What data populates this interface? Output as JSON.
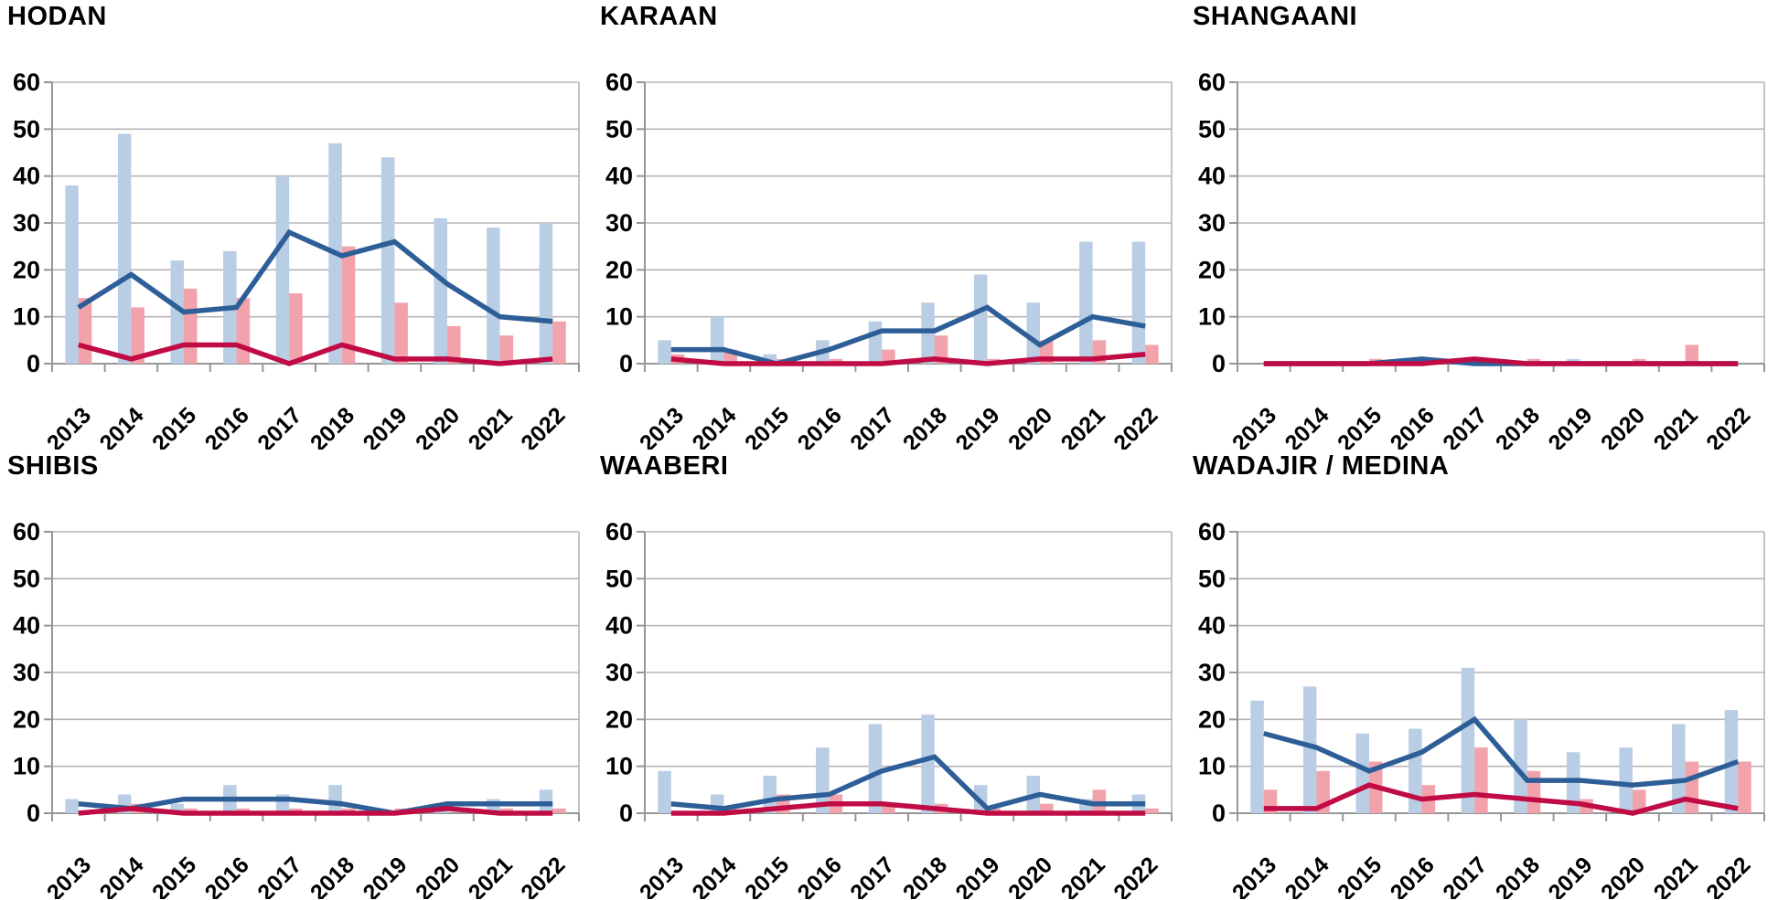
{
  "page": {
    "background": "#ffffff"
  },
  "colors": {
    "bar_blue": "#b9cde4",
    "bar_pink": "#f1a2ab",
    "line_blue": "#2e5e97",
    "line_red": "#c00b45",
    "gridline": "#b5b5b5",
    "axis": "#969696",
    "text": "#000000"
  },
  "axis": {
    "y_tick_labels": [
      "0",
      "10",
      "20",
      "30",
      "40",
      "50",
      "60"
    ],
    "y_ticks": [
      0,
      10,
      20,
      30,
      40,
      50,
      60
    ],
    "ylim": [
      0,
      60
    ],
    "grid": "horizontal"
  },
  "chart_data": [
    {
      "type": "bar+line",
      "title": "HODAN",
      "categories": [
        "2013",
        "2014",
        "2015",
        "2016",
        "2017",
        "2018",
        "2019",
        "2020",
        "2021",
        "2022"
      ],
      "ylim": [
        0,
        60
      ],
      "legend": "none",
      "series": [
        {
          "name": "blue bars",
          "kind": "bar",
          "color": "#b9cde4",
          "values": [
            38,
            49,
            22,
            24,
            40,
            47,
            44,
            31,
            29,
            30
          ]
        },
        {
          "name": "pink bars",
          "kind": "bar",
          "color": "#f1a2ab",
          "values": [
            14,
            12,
            16,
            14,
            15,
            25,
            13,
            8,
            6,
            9
          ]
        },
        {
          "name": "blue line",
          "kind": "line",
          "color": "#2e5e97",
          "values": [
            12,
            19,
            11,
            12,
            28,
            23,
            26,
            17,
            10,
            9
          ]
        },
        {
          "name": "red line",
          "kind": "line",
          "color": "#c00b45",
          "values": [
            4,
            1,
            4,
            4,
            0,
            4,
            1,
            1,
            0,
            1
          ]
        }
      ]
    },
    {
      "type": "bar+line",
      "title": "KARAAN",
      "categories": [
        "2013",
        "2014",
        "2015",
        "2016",
        "2017",
        "2018",
        "2019",
        "2020",
        "2021",
        "2022"
      ],
      "ylim": [
        0,
        60
      ],
      "legend": "none",
      "series": [
        {
          "name": "blue bars",
          "kind": "bar",
          "color": "#b9cde4",
          "values": [
            5,
            10,
            2,
            5,
            9,
            13,
            19,
            13,
            26,
            26
          ]
        },
        {
          "name": "pink bars",
          "kind": "bar",
          "color": "#f1a2ab",
          "values": [
            2,
            3,
            1,
            1,
            3,
            6,
            1,
            5,
            5,
            4
          ]
        },
        {
          "name": "blue line",
          "kind": "line",
          "color": "#2e5e97",
          "values": [
            3,
            3,
            0,
            3,
            7,
            7,
            12,
            4,
            10,
            8
          ]
        },
        {
          "name": "red line",
          "kind": "line",
          "color": "#c00b45",
          "values": [
            1,
            0,
            0,
            0,
            0,
            1,
            0,
            1,
            1,
            2
          ]
        }
      ]
    },
    {
      "type": "bar+line",
      "title": "SHANGAANI",
      "categories": [
        "2013",
        "2014",
        "2015",
        "2016",
        "2017",
        "2018",
        "2019",
        "2020",
        "2021",
        "2022"
      ],
      "ylim": [
        0,
        60
      ],
      "legend": "none",
      "series": [
        {
          "name": "blue bars",
          "kind": "bar",
          "color": "#b9cde4",
          "values": [
            0,
            0,
            0,
            0,
            0,
            0,
            1,
            0,
            0,
            0
          ]
        },
        {
          "name": "pink bars",
          "kind": "bar",
          "color": "#f1a2ab",
          "values": [
            0,
            0,
            1,
            0,
            0,
            1,
            0,
            1,
            4,
            0
          ]
        },
        {
          "name": "blue line",
          "kind": "line",
          "color": "#2e5e97",
          "values": [
            0,
            0,
            0,
            1,
            0,
            0,
            0,
            0,
            0,
            0
          ]
        },
        {
          "name": "red line",
          "kind": "line",
          "color": "#c00b45",
          "values": [
            0,
            0,
            0,
            0,
            1,
            0,
            0,
            0,
            0,
            0
          ]
        }
      ]
    },
    {
      "type": "bar+line",
      "title": "SHIBIS",
      "categories": [
        "2013",
        "2014",
        "2015",
        "2016",
        "2017",
        "2018",
        "2019",
        "2020",
        "2021",
        "2022"
      ],
      "ylim": [
        0,
        60
      ],
      "legend": "none",
      "series": [
        {
          "name": "blue bars",
          "kind": "bar",
          "color": "#b9cde4",
          "values": [
            3,
            4,
            2,
            6,
            4,
            6,
            0,
            1,
            3,
            5
          ]
        },
        {
          "name": "pink bars",
          "kind": "bar",
          "color": "#f1a2ab",
          "values": [
            0,
            2,
            1,
            1,
            1,
            1,
            1,
            0,
            1,
            1
          ]
        },
        {
          "name": "blue line",
          "kind": "line",
          "color": "#2e5e97",
          "values": [
            2,
            1,
            3,
            3,
            3,
            2,
            0,
            2,
            2,
            2
          ]
        },
        {
          "name": "red line",
          "kind": "line",
          "color": "#c00b45",
          "values": [
            0,
            1,
            0,
            0,
            0,
            0,
            0,
            1,
            0,
            0
          ]
        }
      ]
    },
    {
      "type": "bar+line",
      "title": "WAABERI",
      "categories": [
        "2013",
        "2014",
        "2015",
        "2016",
        "2017",
        "2018",
        "2019",
        "2020",
        "2021",
        "2022"
      ],
      "ylim": [
        0,
        60
      ],
      "legend": "none",
      "series": [
        {
          "name": "blue bars",
          "kind": "bar",
          "color": "#b9cde4",
          "values": [
            9,
            4,
            8,
            14,
            19,
            21,
            6,
            8,
            3,
            4
          ]
        },
        {
          "name": "pink bars",
          "kind": "bar",
          "color": "#f1a2ab",
          "values": [
            0,
            1,
            4,
            4,
            2,
            2,
            1,
            2,
            5,
            1
          ]
        },
        {
          "name": "blue line",
          "kind": "line",
          "color": "#2e5e97",
          "values": [
            2,
            1,
            3,
            4,
            9,
            12,
            1,
            4,
            2,
            2
          ]
        },
        {
          "name": "red line",
          "kind": "line",
          "color": "#c00b45",
          "values": [
            0,
            0,
            1,
            2,
            2,
            1,
            0,
            0,
            0,
            0
          ]
        }
      ]
    },
    {
      "type": "bar+line",
      "title": "WADAJIR / MEDINA",
      "categories": [
        "2013",
        "2014",
        "2015",
        "2016",
        "2017",
        "2018",
        "2019",
        "2020",
        "2021",
        "2022"
      ],
      "ylim": [
        0,
        60
      ],
      "legend": "none",
      "series": [
        {
          "name": "blue bars",
          "kind": "bar",
          "color": "#b9cde4",
          "values": [
            24,
            27,
            17,
            18,
            31,
            20,
            13,
            14,
            19,
            22
          ]
        },
        {
          "name": "pink bars",
          "kind": "bar",
          "color": "#f1a2ab",
          "values": [
            5,
            9,
            11,
            6,
            14,
            9,
            3,
            5,
            11,
            11
          ]
        },
        {
          "name": "blue line",
          "kind": "line",
          "color": "#2e5e97",
          "values": [
            17,
            14,
            9,
            13,
            20,
            7,
            7,
            6,
            7,
            11
          ]
        },
        {
          "name": "red line",
          "kind": "line",
          "color": "#c00b45",
          "values": [
            1,
            1,
            6,
            3,
            4,
            3,
            2,
            0,
            3,
            1
          ]
        }
      ]
    }
  ]
}
